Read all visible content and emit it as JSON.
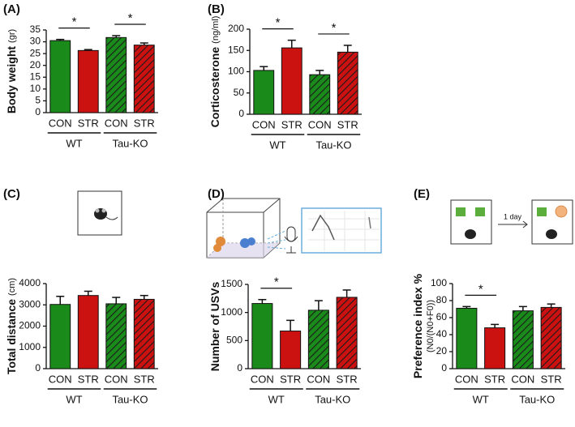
{
  "chart_data": [
    {
      "type": "bar",
      "panel": "(A)",
      "ylabel": "Body weight",
      "yunit": "(gr)",
      "categories": [
        "CON",
        "STR",
        "CON",
        "STR"
      ],
      "groups": [
        "WT",
        "Tau-KO"
      ],
      "values": [
        30.5,
        26.3,
        31.8,
        28.6
      ],
      "errors": [
        0.5,
        0.4,
        0.8,
        0.9
      ],
      "colors": [
        "#1a8a1a",
        "#cc1111",
        "#1a8a1a",
        "#cc1111"
      ],
      "hatched": [
        false,
        false,
        true,
        true
      ],
      "ylim": [
        0,
        35
      ],
      "yticks": [
        0,
        5,
        10,
        15,
        20,
        25,
        30,
        35
      ],
      "annotations": [
        {
          "text": "*",
          "categories": [
            0,
            1
          ]
        },
        {
          "text": "*",
          "categories": [
            2,
            3
          ]
        }
      ]
    },
    {
      "type": "bar",
      "panel": "(B)",
      "ylabel": "Corticosterone",
      "yunit": "(ng/ml)",
      "categories": [
        "CON",
        "STR",
        "CON",
        "STR"
      ],
      "groups": [
        "WT",
        "Tau-KO"
      ],
      "values": [
        103,
        156,
        93,
        146
      ],
      "errors": [
        9,
        18,
        10,
        16
      ],
      "colors": [
        "#1a8a1a",
        "#cc1111",
        "#1a8a1a",
        "#cc1111"
      ],
      "hatched": [
        false,
        false,
        true,
        true
      ],
      "ylim": [
        0,
        200
      ],
      "yticks": [
        0,
        50,
        100,
        150,
        200
      ],
      "annotations": [
        {
          "text": "*",
          "categories": [
            0,
            1
          ]
        },
        {
          "text": "*",
          "categories": [
            2,
            3
          ]
        }
      ]
    },
    {
      "type": "bar",
      "panel": "(C)",
      "ylabel": "Total distance",
      "yunit": "(cm)",
      "categories": [
        "CON",
        "STR",
        "CON",
        "STR"
      ],
      "groups": [
        "WT",
        "Tau-KO"
      ],
      "values": [
        3020,
        3440,
        3050,
        3260
      ],
      "errors": [
        380,
        200,
        300,
        180
      ],
      "colors": [
        "#1a8a1a",
        "#cc1111",
        "#1a8a1a",
        "#cc1111"
      ],
      "hatched": [
        false,
        false,
        true,
        true
      ],
      "ylim": [
        0,
        4000
      ],
      "yticks": [
        0,
        1000,
        2000,
        3000,
        4000
      ],
      "annotations": []
    },
    {
      "type": "bar",
      "panel": "(D)",
      "ylabel": "Number of USVs",
      "categories": [
        "CON",
        "STR",
        "CON",
        "STR"
      ],
      "groups": [
        "WT",
        "Tau-KO"
      ],
      "values": [
        1160,
        670,
        1040,
        1270
      ],
      "errors": [
        70,
        190,
        170,
        130
      ],
      "colors": [
        "#1a8a1a",
        "#cc1111",
        "#1a8a1a",
        "#cc1111"
      ],
      "hatched": [
        false,
        false,
        true,
        true
      ],
      "ylim": [
        0,
        1500
      ],
      "yticks": [
        0,
        500,
        1000,
        1500
      ],
      "annotations": [
        {
          "text": "*",
          "categories": [
            0,
            1
          ]
        }
      ]
    },
    {
      "type": "bar",
      "panel": "(E)",
      "ylabel": "Preference index %",
      "ysublabel": "(N0/(N0+F0))",
      "categories": [
        "CON",
        "STR",
        "CON",
        "STR"
      ],
      "groups": [
        "WT",
        "Tau-KO"
      ],
      "values": [
        71,
        48,
        68,
        72
      ],
      "errors": [
        2,
        4,
        5,
        4
      ],
      "colors": [
        "#1a8a1a",
        "#cc1111",
        "#1a8a1a",
        "#cc1111"
      ],
      "hatched": [
        false,
        false,
        true,
        true
      ],
      "ylim": [
        0,
        100
      ],
      "yticks": [
        0,
        20,
        40,
        60,
        80,
        100
      ],
      "annotations": [
        {
          "text": "*",
          "categories": [
            0,
            1
          ]
        }
      ],
      "illustration_text": "1 day"
    }
  ]
}
